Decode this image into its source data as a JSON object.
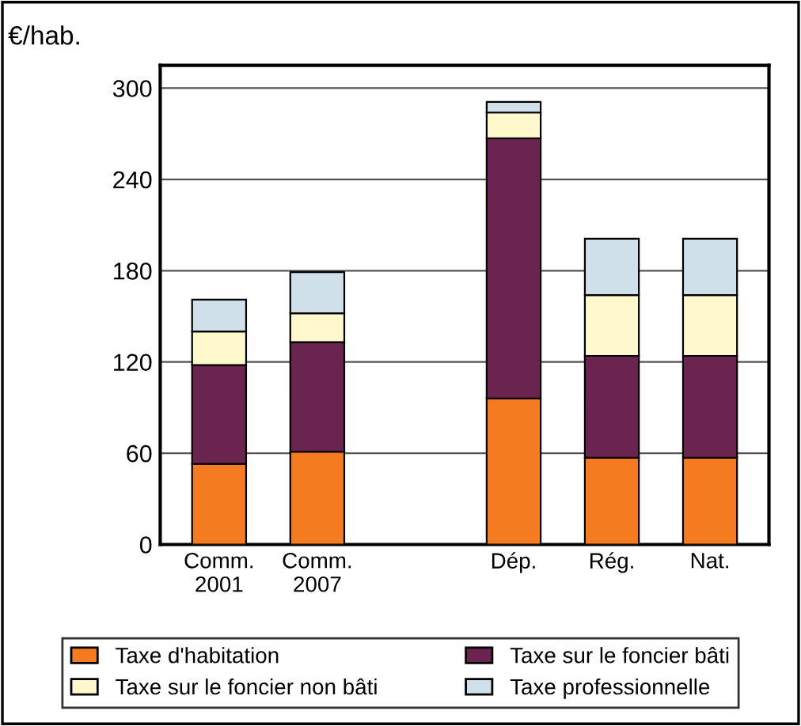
{
  "chart_data": {
    "type": "bar",
    "stacked": true,
    "ylabel": "€/hab.",
    "categories": [
      "Comm.\n2001",
      "Comm.\n2007",
      null,
      "Dép.",
      "Rég.",
      "Nat."
    ],
    "series": [
      {
        "name": "Taxe d'habitation",
        "color": "#f47b20",
        "values": [
          53,
          61,
          null,
          96,
          57,
          57
        ]
      },
      {
        "name": "Taxe sur le foncier bâti",
        "color": "#6b2450",
        "values": [
          65,
          72,
          null,
          171,
          67,
          67
        ]
      },
      {
        "name": "Taxe sur le foncier non bâti",
        "color": "#fff8cc",
        "values": [
          22,
          19,
          null,
          17,
          40,
          40
        ]
      },
      {
        "name": "Taxe professionnelle",
        "color": "#d0e0ea",
        "values": [
          21,
          27,
          null,
          7,
          37,
          37
        ]
      }
    ],
    "ylim": [
      0,
      315
    ],
    "yticks": [
      0,
      60,
      120,
      180,
      240,
      300
    ],
    "grid": "y",
    "legend": "bottom"
  }
}
